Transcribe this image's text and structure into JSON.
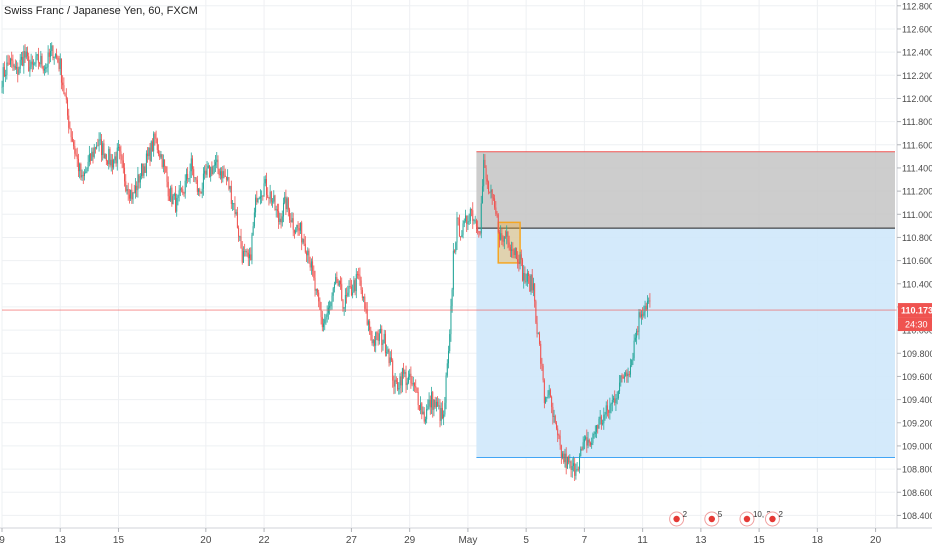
{
  "header": {
    "title": "Swiss Franc / Japanese Yen, 60, FXCM"
  },
  "colors": {
    "up": "#26a69a",
    "down": "#ef5350",
    "grid": "#eef0f3",
    "axis_text": "#4a4a4a",
    "price_line": "#ef5350",
    "price_badge": "#ef5350",
    "stop_zone": "#c4c4c4",
    "target_zone": "#cfe8fb",
    "stop_line": "#ef5350",
    "target_line": "#42a5f5",
    "entry_line": "#222222",
    "entry_box": "#f5a623"
  },
  "chart_data": {
    "type": "candlestick",
    "symbol": "Swiss Franc / Japanese Yen",
    "interval": "60",
    "exchange": "FXCM",
    "ylim": [
      108.3,
      112.85
    ],
    "y_ticks": [
      "108.400",
      "108.600",
      "108.800",
      "109.000",
      "109.200",
      "109.400",
      "109.600",
      "109.800",
      "110.000",
      "110.200",
      "110.400",
      "110.600",
      "110.800",
      "111.000",
      "111.200",
      "111.400",
      "111.600",
      "111.800",
      "112.000",
      "112.200",
      "112.400",
      "112.600",
      "112.800"
    ],
    "x_ticks": [
      {
        "label": "9",
        "idx": 0
      },
      {
        "label": "13",
        "idx": 48
      },
      {
        "label": "15",
        "idx": 96
      },
      {
        "label": "20",
        "idx": 168
      },
      {
        "label": "22",
        "idx": 216
      },
      {
        "label": "27",
        "idx": 288
      },
      {
        "label": "29",
        "idx": 336
      },
      {
        "label": "May",
        "idx": 384
      },
      {
        "label": "5",
        "idx": 432
      },
      {
        "label": "7",
        "idx": 480
      },
      {
        "label": "11",
        "idx": 528
      },
      {
        "label": "13",
        "idx": 576
      },
      {
        "label": "15",
        "idx": 624
      },
      {
        "label": "18",
        "idx": 672
      },
      {
        "label": "20",
        "idx": 720
      }
    ],
    "x_range": [
      0,
      736
    ],
    "anchors": [
      [
        0,
        112.18
      ],
      [
        6,
        112.32
      ],
      [
        12,
        112.22
      ],
      [
        18,
        112.38
      ],
      [
        24,
        112.25
      ],
      [
        30,
        112.33
      ],
      [
        36,
        112.28
      ],
      [
        42,
        112.42
      ],
      [
        48,
        112.28
      ],
      [
        54,
        111.85
      ],
      [
        60,
        111.55
      ],
      [
        66,
        111.28
      ],
      [
        72,
        111.45
      ],
      [
        78,
        111.62
      ],
      [
        84,
        111.55
      ],
      [
        90,
        111.45
      ],
      [
        96,
        111.52
      ],
      [
        102,
        111.28
      ],
      [
        108,
        111.15
      ],
      [
        114,
        111.35
      ],
      [
        120,
        111.48
      ],
      [
        126,
        111.65
      ],
      [
        132,
        111.48
      ],
      [
        138,
        111.18
      ],
      [
        144,
        111.08
      ],
      [
        150,
        111.22
      ],
      [
        156,
        111.42
      ],
      [
        162,
        111.18
      ],
      [
        168,
        111.32
      ],
      [
        174,
        111.42
      ],
      [
        180,
        111.38
      ],
      [
        186,
        111.28
      ],
      [
        192,
        111.05
      ],
      [
        198,
        110.65
      ],
      [
        204,
        110.58
      ],
      [
        210,
        111.18
      ],
      [
        216,
        111.25
      ],
      [
        222,
        111.15
      ],
      [
        228,
        110.95
      ],
      [
        234,
        111.1
      ],
      [
        240,
        110.92
      ],
      [
        246,
        110.85
      ],
      [
        252,
        110.7
      ],
      [
        258,
        110.35
      ],
      [
        264,
        110.05
      ],
      [
        270,
        110.18
      ],
      [
        276,
        110.42
      ],
      [
        282,
        110.22
      ],
      [
        288,
        110.35
      ],
      [
        294,
        110.45
      ],
      [
        300,
        110.12
      ],
      [
        306,
        109.9
      ],
      [
        312,
        109.95
      ],
      [
        318,
        109.85
      ],
      [
        324,
        109.5
      ],
      [
        330,
        109.62
      ],
      [
        336,
        109.55
      ],
      [
        342,
        109.45
      ],
      [
        348,
        109.25
      ],
      [
        354,
        109.4
      ],
      [
        360,
        109.3
      ],
      [
        364,
        109.22
      ],
      [
        366,
        109.55
      ],
      [
        369,
        109.9
      ],
      [
        372,
        110.65
      ],
      [
        375,
        110.9
      ],
      [
        380,
        110.85
      ],
      [
        386,
        111.05
      ],
      [
        390,
        110.95
      ],
      [
        394,
        110.9
      ],
      [
        397,
        111.42
      ],
      [
        400,
        111.25
      ],
      [
        404,
        111.1
      ],
      [
        408,
        110.95
      ],
      [
        412,
        110.75
      ],
      [
        416,
        110.85
      ],
      [
        420,
        110.72
      ],
      [
        426,
        110.65
      ],
      [
        430,
        110.45
      ],
      [
        434,
        110.42
      ],
      [
        438,
        110.38
      ],
      [
        441,
        110.02
      ],
      [
        444,
        109.75
      ],
      [
        447,
        109.4
      ],
      [
        450,
        109.48
      ],
      [
        454,
        109.25
      ],
      [
        458,
        109.05
      ],
      [
        462,
        108.9
      ],
      [
        466,
        108.85
      ],
      [
        470,
        108.78
      ],
      [
        474,
        108.85
      ],
      [
        478,
        108.95
      ],
      [
        482,
        109.05
      ],
      [
        486,
        109.02
      ],
      [
        490,
        109.18
      ],
      [
        494,
        109.22
      ],
      [
        498,
        109.28
      ],
      [
        502,
        109.35
      ],
      [
        506,
        109.45
      ],
      [
        510,
        109.55
      ],
      [
        514,
        109.65
      ],
      [
        518,
        109.7
      ],
      [
        522,
        109.95
      ],
      [
        526,
        110.15
      ],
      [
        530,
        110.22
      ],
      [
        534,
        110.25
      ]
    ],
    "current_price": "110.173",
    "countdown": "24:30",
    "position": {
      "type": "short",
      "start_idx": 391,
      "end_idx": 736,
      "stop": 111.54,
      "entry": 110.88,
      "target": 108.9
    },
    "entry_box": {
      "start_idx": 409,
      "end_idx": 427,
      "top": 110.93,
      "bottom": 110.58
    },
    "event_markers": [
      {
        "label": "2",
        "idx": 556
      },
      {
        "label": "5",
        "idx": 585
      },
      {
        "label": "10, 2",
        "idx": 614
      },
      {
        "label": "2",
        "idx": 635
      }
    ]
  }
}
